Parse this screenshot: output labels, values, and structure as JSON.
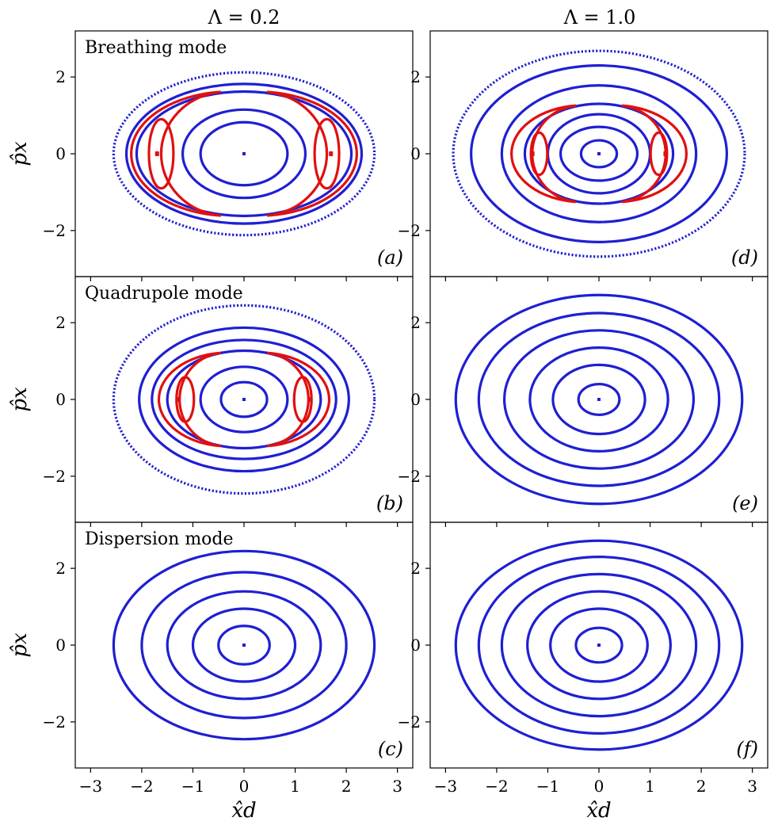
{
  "figure": {
    "column_titles": [
      "Λ = 0.2",
      "Λ = 1.0"
    ],
    "x_axis_label": "x̂d",
    "y_axis_label": "p̂x",
    "mode_labels": [
      "Breathing mode",
      "Quadrupole mode",
      "Dispersion mode"
    ]
  },
  "chart_data": [
    {
      "type": "scatter",
      "panel": "(a)",
      "label": "Breathing mode",
      "column_title": "Λ = 0.2",
      "xlim": [
        -3.3,
        3.3
      ],
      "ylim": [
        -3.2,
        3.2
      ],
      "xticks": [
        -3,
        -2,
        -1,
        0,
        1,
        2,
        3
      ],
      "yticks": [
        -2,
        0,
        2
      ],
      "colors": {
        "regular": "#1f1fd2",
        "resonance": "#e01010"
      },
      "center": [
        0,
        0
      ],
      "regular_orbits": [
        [
          0.85,
          0.82
        ],
        [
          1.2,
          1.15
        ],
        [
          2.1,
          1.62
        ],
        [
          2.3,
          1.82
        ],
        [
          2.55,
          2.12
        ]
      ],
      "resonance_islands": [
        {
          "cx": 1.62,
          "cy": 0,
          "a": 0.24,
          "b": 0.9
        }
      ],
      "separatrix": {
        "a": 1.95,
        "b": 1.62,
        "inner_a": 1.3
      },
      "resonance_centers": [
        [
          -1.7,
          0
        ],
        [
          1.7,
          0
        ]
      ]
    },
    {
      "type": "scatter",
      "panel": "(b)",
      "label": "Quadrupole mode",
      "column_title": "Λ = 0.2",
      "xlim": [
        -3.3,
        3.3
      ],
      "ylim": [
        -3.2,
        3.2
      ],
      "xticks": [
        -3,
        -2,
        -1,
        0,
        1,
        2,
        3
      ],
      "yticks": [
        -2,
        0,
        2
      ],
      "colors": {
        "regular": "#1f1fd2",
        "resonance": "#e01010"
      },
      "center": [
        0,
        0
      ],
      "regular_orbits": [
        [
          0.45,
          0.45
        ],
        [
          0.85,
          0.85
        ],
        [
          1.5,
          1.27
        ],
        [
          1.8,
          1.55
        ],
        [
          2.05,
          1.87
        ],
        [
          2.55,
          2.45
        ]
      ],
      "resonance_islands": [
        {
          "cx": 1.15,
          "cy": 0,
          "a": 0.17,
          "b": 0.58
        }
      ],
      "separatrix": {
        "a": 1.35,
        "b": 1.22,
        "inner_a": 0.9
      },
      "resonance_centers": [
        [
          -1.3,
          0
        ],
        [
          1.3,
          0
        ]
      ]
    },
    {
      "type": "scatter",
      "panel": "(c)",
      "label": "Dispersion mode",
      "column_title": "Λ = 0.2",
      "xlim": [
        -3.3,
        3.3
      ],
      "ylim": [
        -3.2,
        3.2
      ],
      "xticks": [
        -3,
        -2,
        -1,
        0,
        1,
        2,
        3
      ],
      "yticks": [
        -2,
        0,
        2
      ],
      "colors": {
        "regular": "#1f1fd2",
        "resonance": "#e01010"
      },
      "center": [
        0,
        0
      ],
      "regular_orbits": [
        [
          0.5,
          0.5
        ],
        [
          1.0,
          0.95
        ],
        [
          1.5,
          1.4
        ],
        [
          2.0,
          1.9
        ],
        [
          2.55,
          2.45
        ]
      ],
      "resonance_islands": [],
      "separatrix": null,
      "resonance_centers": []
    },
    {
      "type": "scatter",
      "panel": "(d)",
      "label": "",
      "column_title": "Λ = 1.0",
      "xlim": [
        -3.3,
        3.3
      ],
      "ylim": [
        -3.2,
        3.2
      ],
      "xticks": [
        -3,
        -2,
        -1,
        0,
        1,
        2,
        3
      ],
      "yticks": [
        -2,
        0,
        2
      ],
      "colors": {
        "regular": "#1f1fd2",
        "resonance": "#e01010"
      },
      "center": [
        0,
        0
      ],
      "regular_orbits": [
        [
          0.35,
          0.35
        ],
        [
          0.75,
          0.7
        ],
        [
          1.0,
          1.03
        ],
        [
          1.45,
          1.3
        ],
        [
          1.9,
          1.78
        ],
        [
          2.5,
          2.3
        ],
        [
          2.85,
          2.68
        ]
      ],
      "resonance_islands": [
        {
          "cx": 1.17,
          "cy": 0,
          "a": 0.16,
          "b": 0.55
        }
      ],
      "separatrix": {
        "a": 1.4,
        "b": 1.26,
        "inner_a": 0.95
      },
      "resonance_centers": [
        [
          -1.3,
          0
        ],
        [
          1.3,
          0
        ]
      ]
    },
    {
      "type": "scatter",
      "panel": "(e)",
      "label": "",
      "column_title": "Λ = 1.0",
      "xlim": [
        -3.3,
        3.3
      ],
      "ylim": [
        -3.2,
        3.2
      ],
      "xticks": [
        -3,
        -2,
        -1,
        0,
        1,
        2,
        3
      ],
      "yticks": [
        -2,
        0,
        2
      ],
      "colors": {
        "regular": "#1f1fd2",
        "resonance": "#e01010"
      },
      "center": [
        0,
        0
      ],
      "regular_orbits": [
        [
          0.4,
          0.4
        ],
        [
          0.9,
          0.9
        ],
        [
          1.35,
          1.35
        ],
        [
          1.85,
          1.8
        ],
        [
          2.35,
          2.25
        ],
        [
          2.8,
          2.72
        ]
      ],
      "resonance_islands": [],
      "separatrix": null,
      "resonance_centers": []
    },
    {
      "type": "scatter",
      "panel": "(f)",
      "label": "",
      "column_title": "Λ = 1.0",
      "xlim": [
        -3.3,
        3.3
      ],
      "ylim": [
        -3.2,
        3.2
      ],
      "xticks": [
        -3,
        -2,
        -1,
        0,
        1,
        2,
        3
      ],
      "yticks": [
        -2,
        0,
        2
      ],
      "colors": {
        "regular": "#1f1fd2",
        "resonance": "#e01010"
      },
      "center": [
        0,
        0
      ],
      "regular_orbits": [
        [
          0.45,
          0.45
        ],
        [
          0.95,
          0.95
        ],
        [
          1.4,
          1.4
        ],
        [
          1.9,
          1.85
        ],
        [
          2.35,
          2.3
        ],
        [
          2.8,
          2.72
        ]
      ],
      "resonance_islands": [],
      "separatrix": null,
      "resonance_centers": []
    }
  ]
}
